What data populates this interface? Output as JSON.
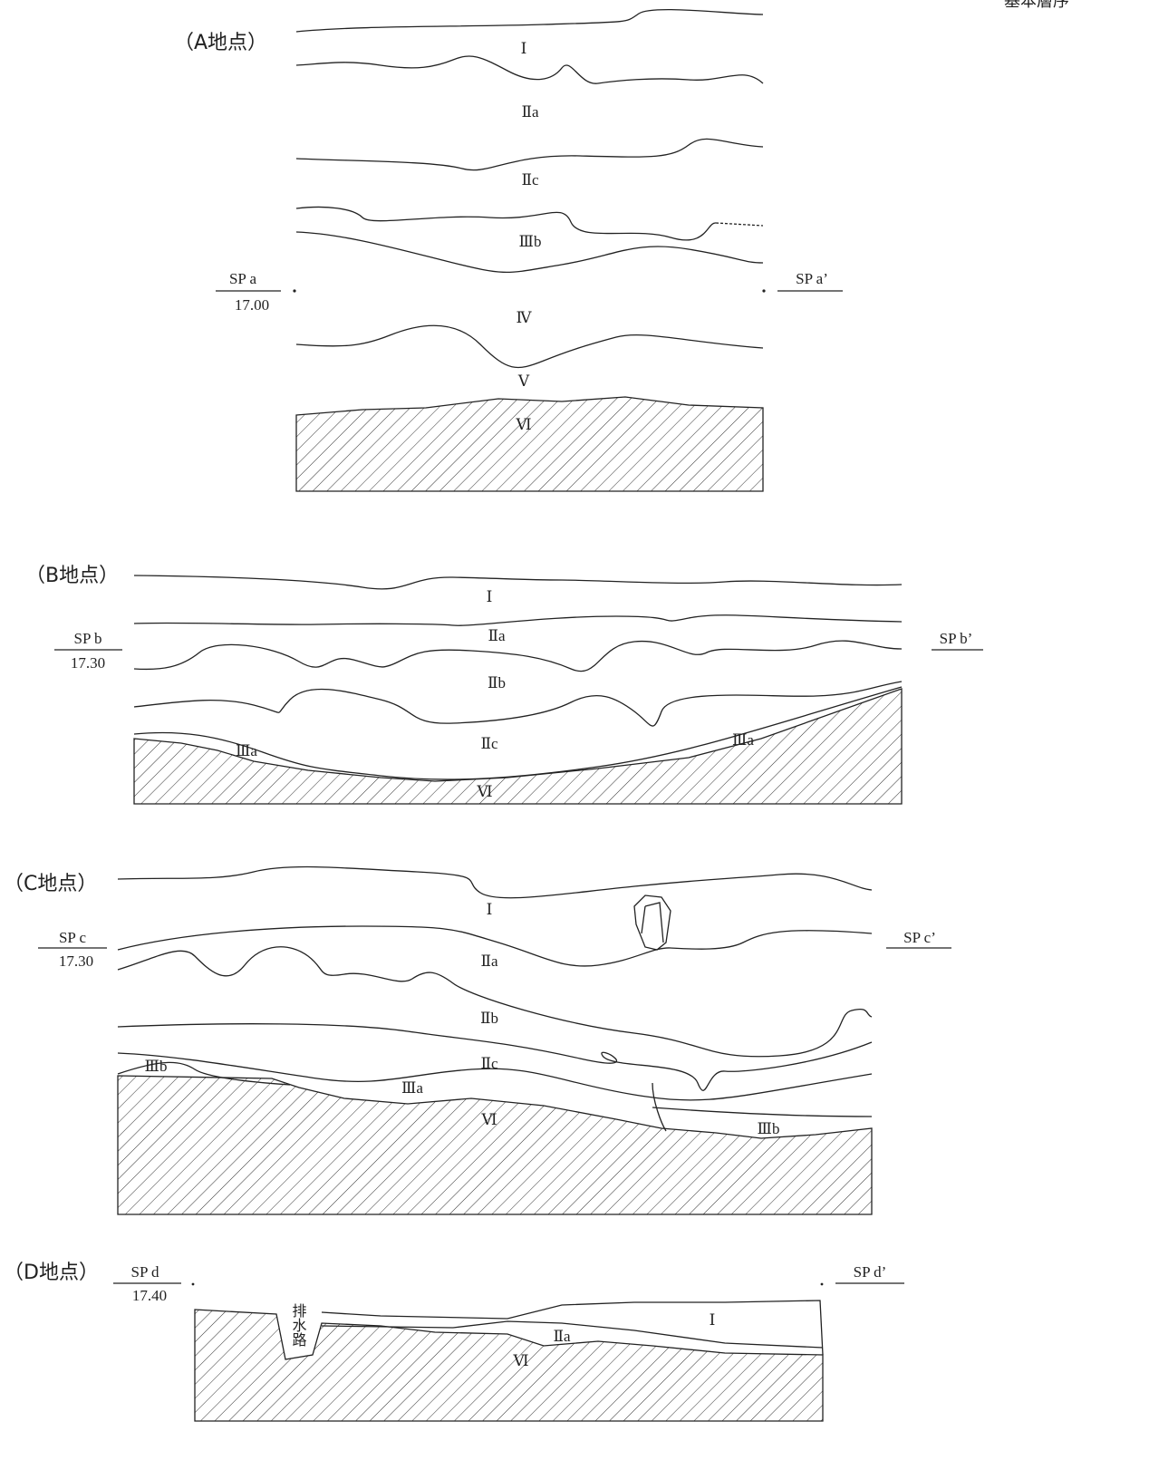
{
  "header": "基本層序",
  "sections": [
    {
      "title": "（A地点）",
      "sp_left": "SP a",
      "elevation": "17.00",
      "sp_right": "SP a’",
      "layers": [
        "Ⅰ",
        "Ⅱa",
        "Ⅱc",
        "Ⅲb",
        "Ⅳ",
        "Ⅴ",
        "Ⅵ"
      ]
    },
    {
      "title": "（B地点）",
      "sp_left": "SP b",
      "elevation": "17.30",
      "sp_right": "SP b’",
      "layers": [
        "Ⅰ",
        "Ⅱa",
        "Ⅱb",
        "Ⅱc",
        "Ⅲa",
        "Ⅲa",
        "Ⅵ"
      ]
    },
    {
      "title": "（C地点）",
      "sp_left": "SP c",
      "elevation": "17.30",
      "sp_right": "SP c’",
      "layers": [
        "Ⅰ",
        "Ⅱa",
        "Ⅱb",
        "Ⅱc",
        "Ⅲb",
        "Ⅲa",
        "Ⅵ",
        "Ⅲb"
      ]
    },
    {
      "title": "（D地点）",
      "sp_left": "SP d",
      "elevation": "17.40",
      "sp_right": "SP d’",
      "layers": [
        "Ⅰ",
        "Ⅱa",
        "Ⅵ"
      ],
      "feature": "排水路"
    }
  ]
}
